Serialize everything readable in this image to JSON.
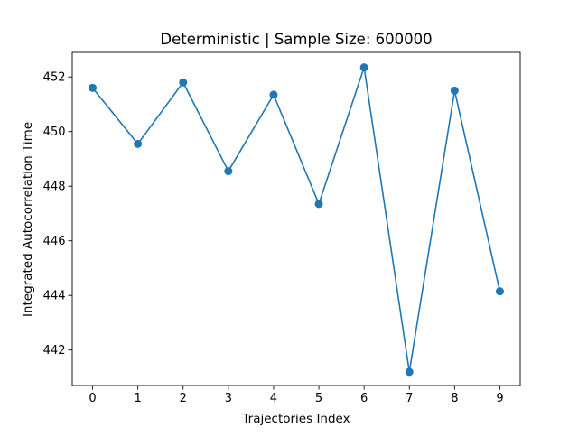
{
  "chart_data": {
    "type": "line",
    "title": "Deterministic | Sample Size: 600000",
    "xlabel": "Trajectories Index",
    "ylabel": "Integrated Autocorrelation Time",
    "x": [
      0,
      1,
      2,
      3,
      4,
      5,
      6,
      7,
      8,
      9
    ],
    "x_tick_labels": [
      "0",
      "1",
      "2",
      "3",
      "4",
      "5",
      "6",
      "7",
      "8",
      "9"
    ],
    "y_tick_values": [
      442,
      444,
      446,
      448,
      450,
      452
    ],
    "y_tick_labels": [
      "442",
      "444",
      "446",
      "448",
      "450",
      "452"
    ],
    "xlim": [
      -0.45,
      9.45
    ],
    "ylim": [
      440.7,
      452.9
    ],
    "grid": false,
    "series": [
      {
        "color": "#1f77b4",
        "marker": "circle",
        "values": [
          451.6,
          449.55,
          451.8,
          448.55,
          451.35,
          447.35,
          452.35,
          441.2,
          451.5,
          444.15
        ]
      }
    ]
  }
}
